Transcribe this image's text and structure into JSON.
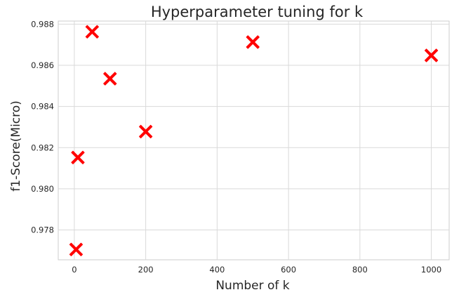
{
  "chart_data": {
    "type": "scatter",
    "title": "Hyperparameter tuning for k",
    "xlabel": "Number of k",
    "ylabel": "f1-Score(Micro)",
    "xlim": [
      -45,
      1050
    ],
    "ylim": [
      0.97655,
      0.98815
    ],
    "xticks": [
      0,
      200,
      400,
      600,
      800,
      1000
    ],
    "xtick_labels": [
      "0",
      "200",
      "400",
      "600",
      "800",
      "1000"
    ],
    "yticks": [
      0.978,
      0.98,
      0.982,
      0.984,
      0.986,
      0.988
    ],
    "ytick_labels": [
      "0.978",
      "0.980",
      "0.982",
      "0.984",
      "0.986",
      "0.988"
    ],
    "grid": true,
    "series": [
      {
        "marker": "X",
        "color": "#ff0000",
        "points": [
          {
            "x": 5,
            "y": 0.97705
          },
          {
            "x": 10,
            "y": 0.98152
          },
          {
            "x": 50,
            "y": 0.98763
          },
          {
            "x": 100,
            "y": 0.98535
          },
          {
            "x": 200,
            "y": 0.98278
          },
          {
            "x": 500,
            "y": 0.98713
          },
          {
            "x": 1000,
            "y": 0.98648
          }
        ]
      }
    ]
  }
}
